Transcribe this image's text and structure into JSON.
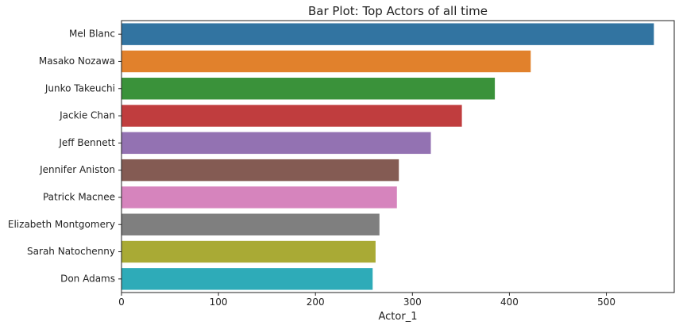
{
  "chart_data": {
    "type": "bar",
    "orientation": "horizontal",
    "title": "Bar Plot: Top Actors of all time",
    "xlabel": "Actor_1",
    "ylabel": "",
    "xlim": [
      0,
      570
    ],
    "xticks": [
      0,
      100,
      200,
      300,
      400,
      500
    ],
    "grid": false,
    "categories": [
      "Mel Blanc",
      "Masako Nozawa",
      "Junko Takeuchi",
      "Jackie Chan",
      "Jeff Bennett",
      "Jennifer Aniston",
      "Patrick Macnee",
      "Elizabeth Montgomery",
      "Sarah Natochenny",
      "Don Adams"
    ],
    "values": [
      549,
      422,
      385,
      351,
      319,
      286,
      284,
      266,
      262,
      259
    ],
    "colors": [
      "#3274a1",
      "#e1812c",
      "#3a923a",
      "#c03d3e",
      "#9372b2",
      "#845b53",
      "#d684bd",
      "#7f7f7f",
      "#a9aa35",
      "#2eabb8"
    ]
  }
}
